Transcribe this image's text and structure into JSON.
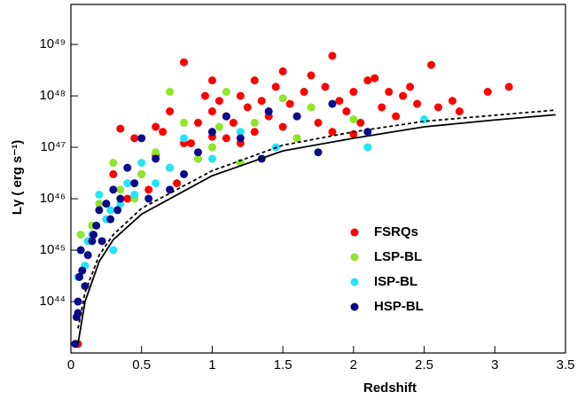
{
  "chart_data": {
    "type": "scatter",
    "xlabel": "Redshift",
    "ylabel": "Lγ ( erg s⁻¹)",
    "xlim": [
      0,
      3.5
    ],
    "xticks": [
      0,
      0.5,
      1,
      1.5,
      2,
      2.5,
      3,
      3.5
    ],
    "ylim": [
      1e+43,
      6e+49
    ],
    "ylog": true,
    "yticks": [
      {
        "value": 1e+44,
        "label": "10⁴⁴"
      },
      {
        "value": 1e+45,
        "label": "10⁴⁵"
      },
      {
        "value": 1e+46,
        "label": "10⁴⁶"
      },
      {
        "value": 1e+47,
        "label": "10⁴⁷"
      },
      {
        "value": 1e+48,
        "label": "10⁴⁸"
      },
      {
        "value": 1e+49,
        "label": "10⁴⁹"
      }
    ],
    "legend": "center-right",
    "series": [
      {
        "name": "FSRQs",
        "color": "#ff0000",
        "x": [
          0.35,
          0.45,
          0.6,
          0.7,
          0.8,
          0.85,
          0.9,
          0.95,
          1.0,
          1.0,
          1.05,
          1.1,
          1.1,
          1.15,
          1.2,
          1.25,
          1.3,
          1.3,
          1.35,
          1.4,
          1.45,
          1.5,
          1.5,
          1.55,
          1.6,
          1.65,
          1.7,
          1.75,
          1.8,
          1.85,
          1.85,
          1.9,
          1.95,
          2.0,
          2.05,
          2.1,
          2.15,
          2.2,
          2.25,
          2.3,
          2.35,
          2.4,
          2.45,
          2.55,
          2.6,
          2.7,
          2.75,
          2.95,
          3.1,
          0.6,
          0.7,
          0.8,
          0.9,
          0.5,
          0.55,
          0.65,
          1.2,
          1.6,
          0.05,
          0.75,
          0.4,
          0.3,
          1.0,
          2.0
        ],
        "values": [
          2.3e+47,
          1.5e+47,
          2.5e+47,
          5e+47,
          4.5e+48,
          1.2e+47,
          3e+47,
          1e+48,
          5e+47,
          2e+48,
          8e+47,
          1.5e+47,
          4e+47,
          3e+47,
          1e+48,
          6e+47,
          2e+48,
          2e+47,
          8e+47,
          4e+47,
          1.5e+48,
          3e+48,
          2.5e+47,
          7e+47,
          4e+47,
          1.2e+48,
          2.5e+48,
          3e+47,
          1.5e+48,
          6e+48,
          2e+47,
          8e+47,
          5e+47,
          1.2e+48,
          3e+47,
          2e+48,
          2.2e+48,
          6e+47,
          1.2e+48,
          4e+47,
          1e+48,
          1.5e+48,
          7e+47,
          4e+48,
          6e+47,
          8e+47,
          5e+47,
          1.2e+48,
          1.5e+48,
          7e+46,
          4e+46,
          1.2e+47,
          6e+46,
          3e+46,
          1.5e+46,
          2e+47,
          1.2e+47,
          1.5e+47,
          1.5e+43,
          2e+46,
          1e+46,
          3e+46,
          1.6e+47,
          1.8e+47
        ]
      },
      {
        "name": "LSP-BL",
        "color": "#8ee62a",
        "x": [
          0.07,
          0.15,
          0.2,
          0.3,
          0.35,
          0.45,
          0.5,
          0.6,
          0.7,
          0.8,
          0.9,
          1.0,
          1.05,
          1.1,
          1.2,
          1.3,
          1.5,
          1.7,
          2.0,
          2.1,
          1.6
        ],
        "values": [
          2e+45,
          3e+45,
          8e+45,
          5e+46,
          1.5e+46,
          1e+46,
          3e+46,
          8e+46,
          1.2e+48,
          3e+47,
          6e+46,
          1e+47,
          2.5e+47,
          1.2e+48,
          5e+46,
          3e+47,
          9e+47,
          6e+47,
          3.5e+47,
          1e+47,
          1.5e+47
        ]
      },
      {
        "name": "ISP-BL",
        "color": "#22e5f5",
        "x": [
          0.05,
          0.1,
          0.15,
          0.2,
          0.25,
          0.3,
          0.35,
          0.4,
          0.45,
          0.5,
          0.6,
          0.7,
          0.8,
          1.0,
          1.2,
          1.45,
          2.1,
          2.5,
          0.12,
          0.28
        ],
        "values": [
          3e+44,
          5e+44,
          2e+45,
          1.2e+46,
          4e+45,
          1e+45,
          8e+45,
          2e+46,
          1.2e+46,
          5e+46,
          2e+46,
          4e+46,
          1.5e+47,
          6e+46,
          2e+47,
          1e+47,
          1e+47,
          3.5e+47,
          1.5e+45,
          6e+45
        ]
      },
      {
        "name": "HSP-BL",
        "color": "#0a0a8a",
        "x": [
          0.03,
          0.04,
          0.05,
          0.06,
          0.07,
          0.08,
          0.1,
          0.12,
          0.15,
          0.18,
          0.2,
          0.22,
          0.25,
          0.28,
          0.3,
          0.33,
          0.35,
          0.4,
          0.45,
          0.5,
          0.55,
          0.6,
          0.7,
          0.8,
          0.9,
          1.0,
          1.1,
          1.2,
          1.35,
          1.4,
          1.6,
          1.75,
          1.85,
          2.1,
          0.05,
          0.16
        ],
        "values": [
          1.5e+43,
          5e+43,
          1e+44,
          3e+44,
          1e+45,
          4e+44,
          2e+44,
          8e+44,
          1.5e+45,
          3e+45,
          6e+45,
          1.5e+45,
          8e+45,
          4e+45,
          1.5e+46,
          6e+45,
          1e+46,
          4e+46,
          2e+46,
          1.5e+47,
          1e+46,
          6e+46,
          1.5e+46,
          3e+46,
          8e+46,
          2e+47,
          4e+47,
          1.5e+47,
          6e+46,
          5e+47,
          4e+47,
          8e+46,
          7e+47,
          2e+47,
          6e+43,
          2e+45
        ]
      }
    ],
    "lines": [
      {
        "color": "#000000",
        "dash": false,
        "x": [
          0.05,
          0.1,
          0.2,
          0.3,
          0.5,
          1,
          1.5,
          2,
          2.5,
          3,
          3.43
        ],
        "values": [
          1.5e+43,
          1e+44,
          6e+44,
          1.6e+45,
          5e+45,
          2.8e+46,
          8.5e+46,
          1.5e+47,
          2.5e+47,
          3.4e+47,
          4.3e+47
        ]
      },
      {
        "color": "#000000",
        "dash": true,
        "x": [
          0.05,
          0.1,
          0.2,
          0.3,
          0.5,
          1,
          1.5,
          2,
          2.5,
          3,
          3.43
        ],
        "values": [
          3e+43,
          1.5e+44,
          8e+44,
          2e+45,
          6.5e+45,
          3.5e+46,
          1.1e+47,
          2e+47,
          3.2e+47,
          4.2e+47,
          5.3e+47
        ]
      }
    ]
  }
}
